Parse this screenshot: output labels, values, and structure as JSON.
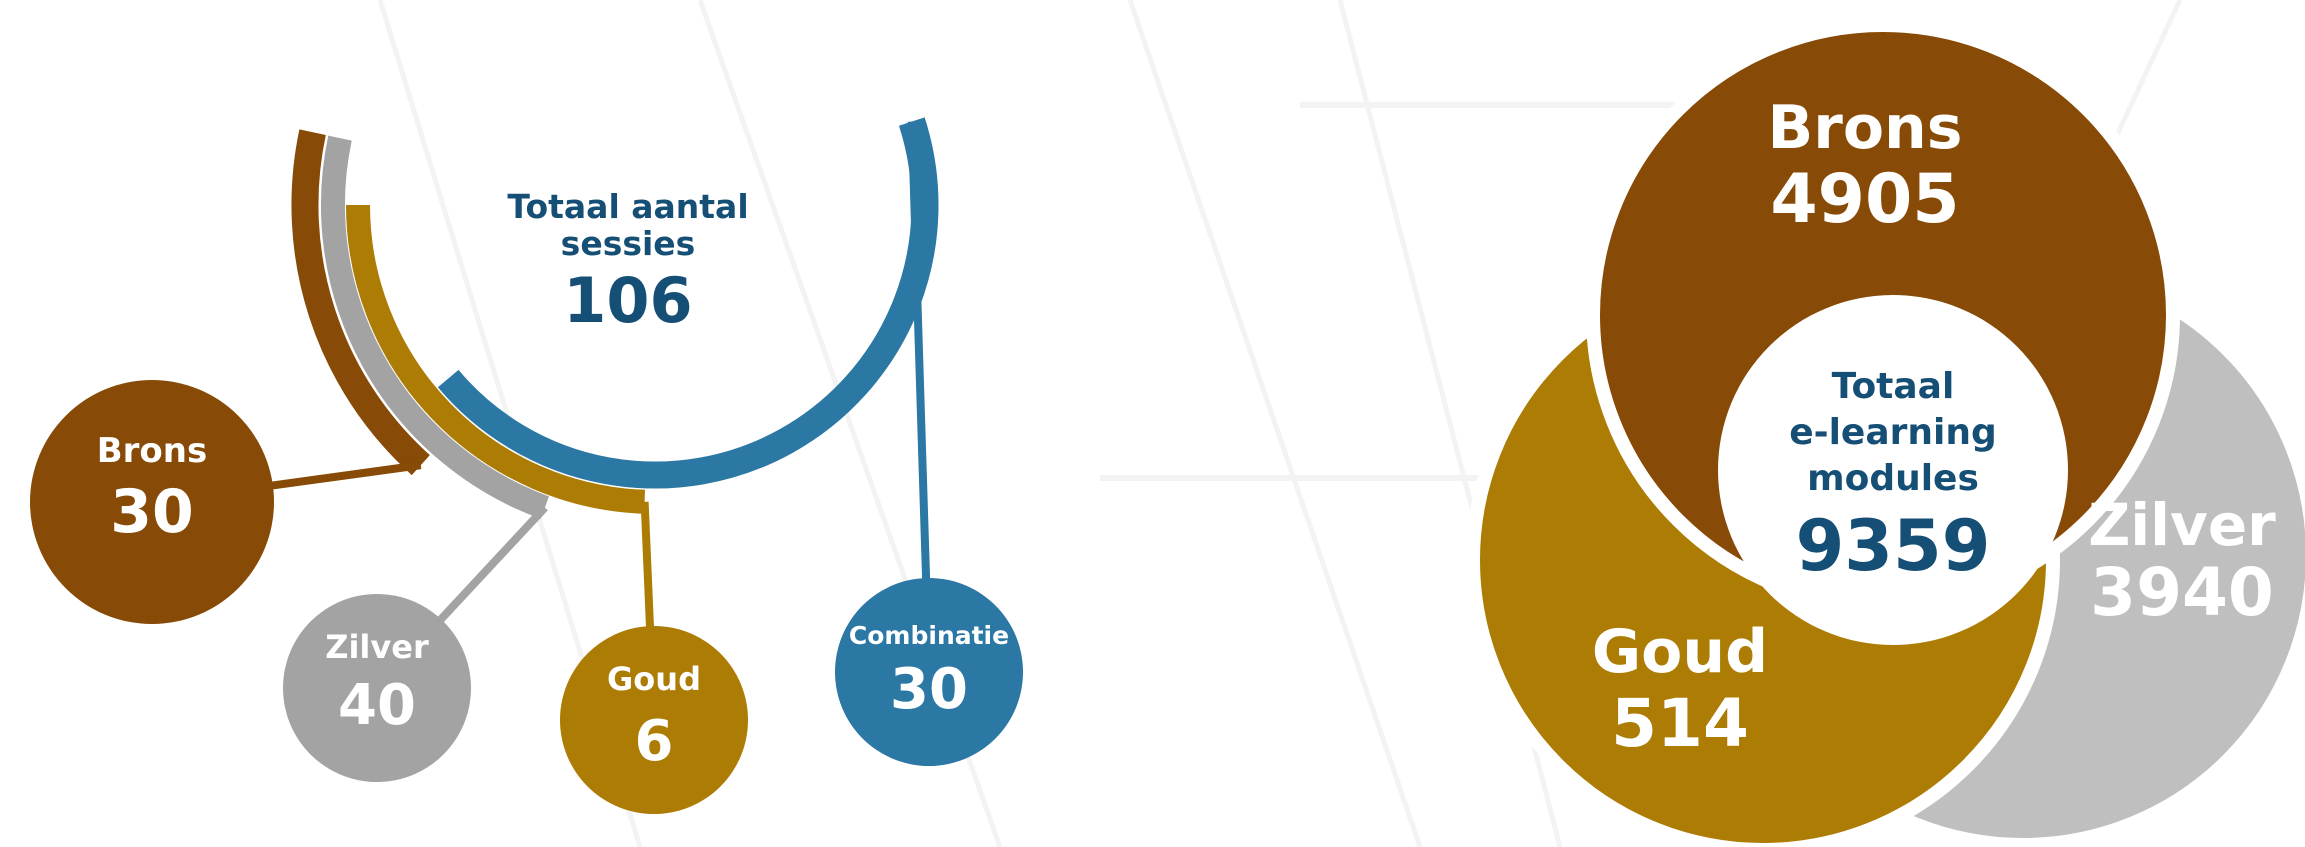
{
  "colors": {
    "brons": "#874a07",
    "zilver": "#a3a3a3",
    "goud": "#ad7c04",
    "combinatie": "#2c78a4",
    "zilver_right": "#bfbfbf",
    "center_text": "#164f75",
    "white": "#ffffff",
    "bg_stripe": "#f3f3f3"
  },
  "chart_data": [
    {
      "type": "radial-bar",
      "center": {
        "title": "Totaal aantal sessies",
        "title_lines": [
          "Totaal aantal",
          "sessies"
        ],
        "total": "106"
      },
      "series": [
        {
          "name": "Brons",
          "value": 30,
          "color_key": "brons"
        },
        {
          "name": "Zilver",
          "value": 40,
          "color_key": "zilver"
        },
        {
          "name": "Goud",
          "value": 6,
          "color_key": "goud"
        },
        {
          "name": "Combinatie",
          "value": 30,
          "color_key": "combinatie"
        }
      ]
    },
    {
      "type": "pie",
      "center": {
        "title": "Totaal e-learning modules",
        "title_lines": [
          "Totaal",
          "e-learning",
          "modules"
        ],
        "total": "9359"
      },
      "series": [
        {
          "name": "Brons",
          "value": 4905,
          "color_key": "brons"
        },
        {
          "name": "Zilver",
          "value": 3940,
          "color_key": "zilver_right"
        },
        {
          "name": "Goud",
          "value": 514,
          "color_key": "goud"
        }
      ]
    }
  ]
}
